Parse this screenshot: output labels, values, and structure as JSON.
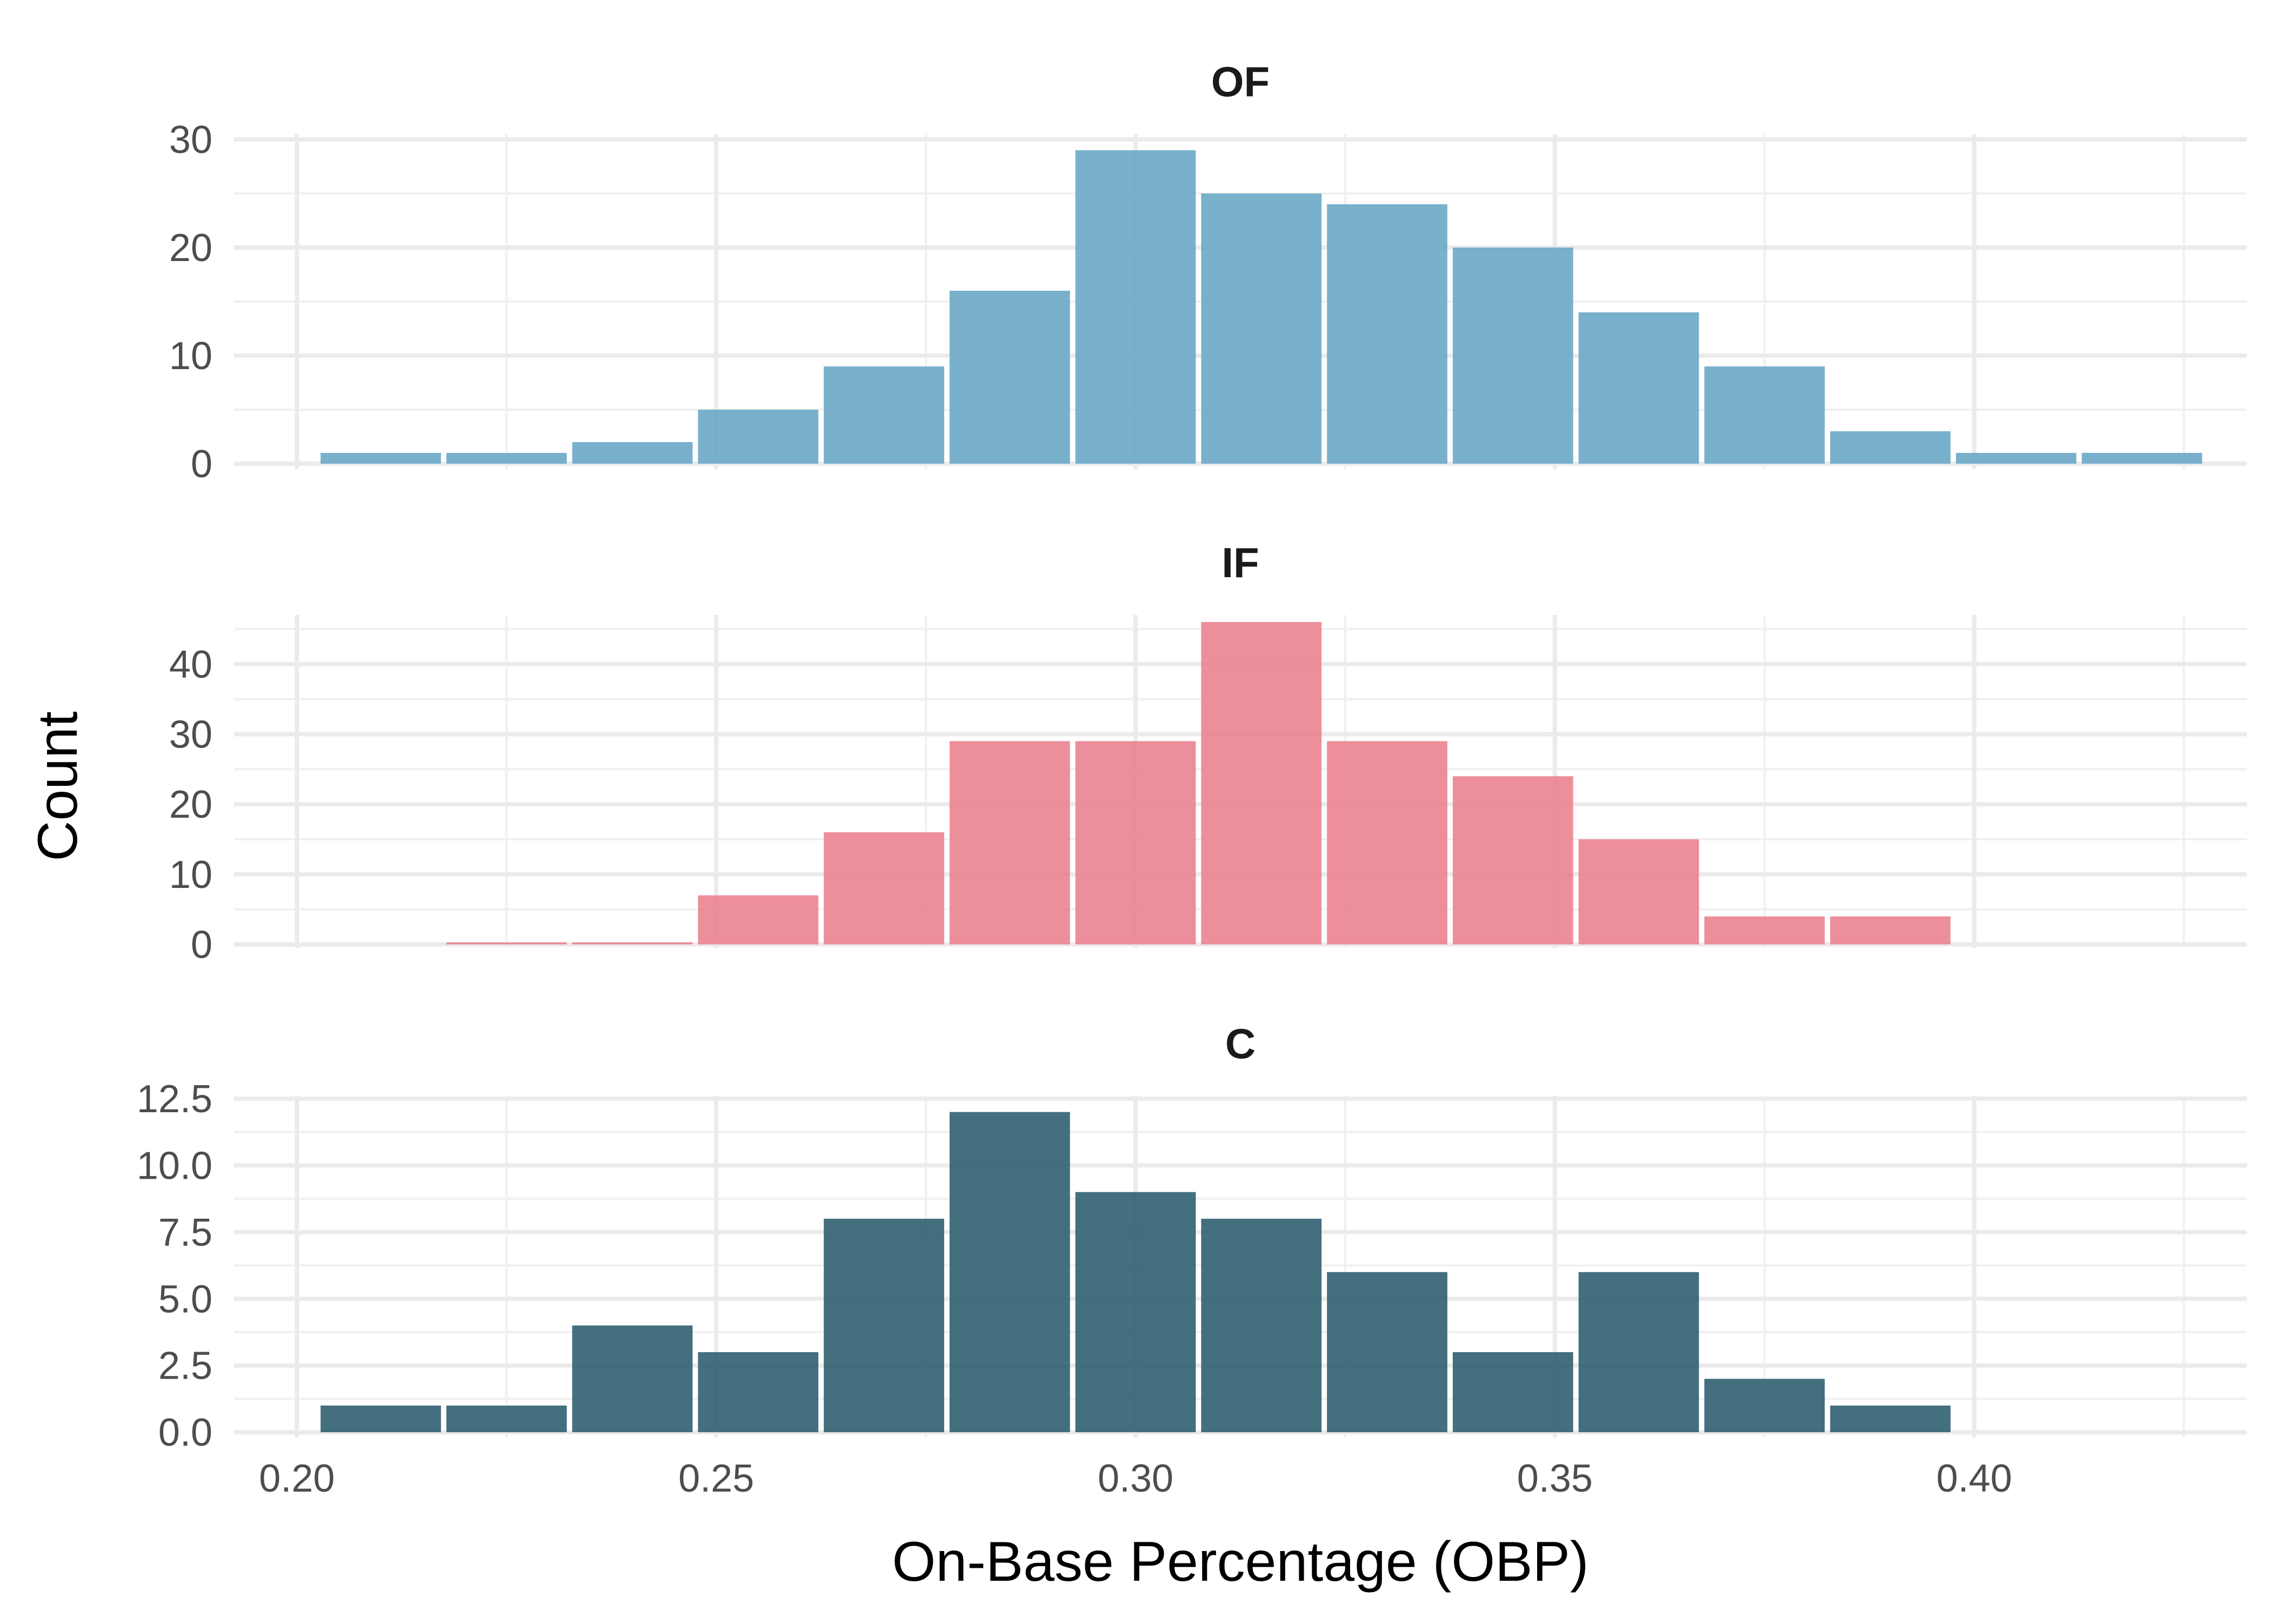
{
  "chart_data": {
    "type": "bar",
    "xlabel": "On-Base Percentage (OBP)",
    "ylabel": "Count",
    "grid": true,
    "legend": "none",
    "xlim": [
      0.1925,
      0.4325
    ],
    "x_ticks": [
      "0.20",
      "0.25",
      "0.30",
      "0.35",
      "0.40"
    ],
    "x_tick_values": [
      0.2,
      0.25,
      0.3,
      0.35,
      0.4
    ],
    "bin_width": 0.015,
    "bin_centers": [
      0.21,
      0.225,
      0.24,
      0.255,
      0.27,
      0.285,
      0.3,
      0.315,
      0.33,
      0.345,
      0.36,
      0.375,
      0.39,
      0.405,
      0.42
    ],
    "panels": [
      {
        "title": "OF",
        "color": "#6aa8c8",
        "ylim": [
          -0.5,
          30.5
        ],
        "y_ticks": [
          "0",
          "10",
          "20",
          "30"
        ],
        "y_tick_values": [
          0,
          10,
          20,
          30
        ],
        "values": [
          1,
          1,
          2,
          5,
          9,
          16,
          29,
          25,
          24,
          20,
          14,
          9,
          3,
          1,
          1
        ]
      },
      {
        "title": "IF",
        "color": "#eb8390",
        "ylim": [
          -0.5,
          47
        ],
        "y_ticks": [
          "0",
          "10",
          "20",
          "30",
          "40"
        ],
        "y_tick_values": [
          0,
          10,
          20,
          30,
          40
        ],
        "values": [
          0,
          0.3,
          0.3,
          7,
          16,
          29,
          29,
          46,
          29,
          24,
          15,
          4,
          4,
          0,
          0
        ]
      },
      {
        "title": "C",
        "color": "#2f5f70",
        "ylim": [
          -0.2,
          12.6
        ],
        "y_ticks": [
          "0.0",
          "2.5",
          "5.0",
          "7.5",
          "10.0",
          "12.5"
        ],
        "y_tick_values": [
          0,
          2.5,
          5,
          7.5,
          10,
          12.5
        ],
        "values": [
          1,
          1,
          4,
          3,
          8,
          12,
          9,
          8,
          6,
          3,
          6,
          2,
          1,
          0,
          0
        ]
      }
    ]
  }
}
